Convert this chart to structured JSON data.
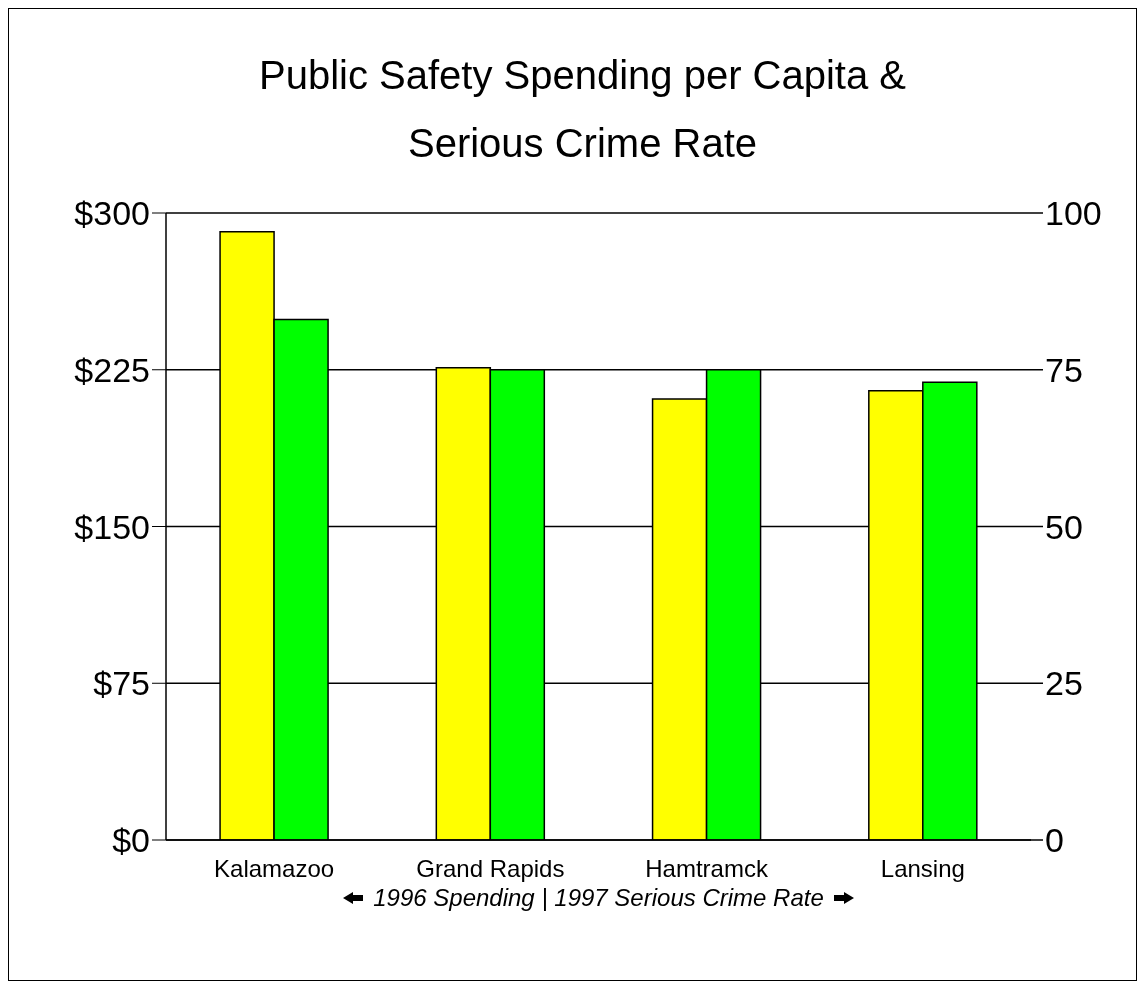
{
  "chart_data": {
    "type": "bar",
    "title": "Public Safety Spending per Capita &\nSerious Crime Rate",
    "xlabel": "1996 Spending | 1997 Serious Crime Rate",
    "categories": [
      "Kalamazoo",
      "Grand Rapids",
      "Hamtramck",
      "Lansing"
    ],
    "series": [
      {
        "color": "#ffff00",
        "values": [
          291,
          226,
          211,
          215
        ]
      },
      {
        "color": "#00ff00",
        "axis": "y2",
        "values": [
          83,
          75,
          75,
          73
        ]
      }
    ],
    "ylim": [
      0,
      300
    ],
    "yticks": [
      {
        "value": 0,
        "label": "$0"
      },
      {
        "value": 75,
        "label": "$75"
      },
      {
        "value": 150,
        "label": "$150"
      },
      {
        "value": 225,
        "label": "$225"
      },
      {
        "value": 300,
        "label": "$300"
      }
    ],
    "y2lim": [
      0,
      100
    ],
    "y2ticks": [
      0,
      25,
      50,
      75,
      100
    ],
    "grid": "y",
    "legend": false
  }
}
